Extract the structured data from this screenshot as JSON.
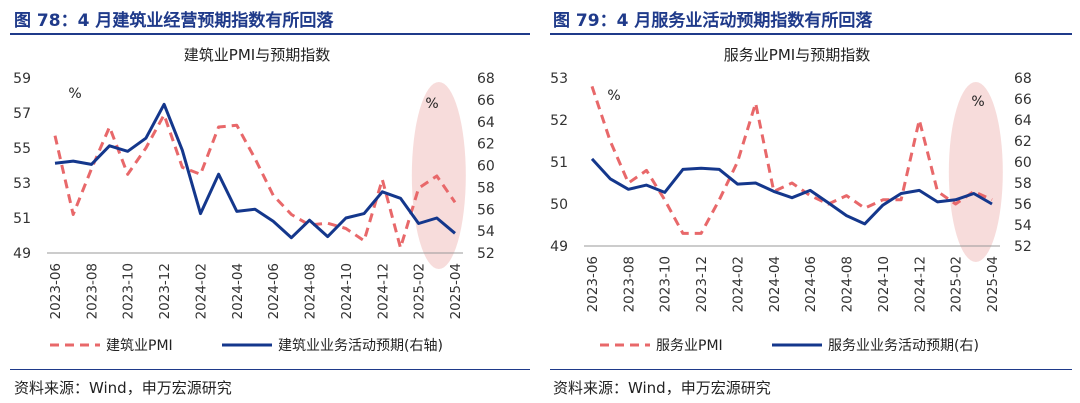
{
  "figures": {
    "left": {
      "heading": "图 78：4 月建筑业经营预期指数有所回落"
    },
    "right": {
      "heading": "图 79：4 月服务业活动预期指数有所回落"
    }
  },
  "source_note": "资料来源：Wind，申万宏源研究",
  "colors": {
    "pmi": "#e8686a",
    "expect": "#14378c",
    "highlight": "#f5d3d2",
    "heading": "#1f3a8a"
  },
  "chart_data": [
    {
      "type": "line",
      "title": "建筑业PMI与预期指数",
      "x_tick_labels": [
        "2023-06",
        "2023-08",
        "2023-10",
        "2023-12",
        "2024-02",
        "2024-04",
        "2024-06",
        "2024-08",
        "2024-10",
        "2024-12",
        "2025-02",
        "2025-04"
      ],
      "x": [
        "2023-06",
        "2023-07",
        "2023-08",
        "2023-09",
        "2023-10",
        "2023-11",
        "2023-12",
        "2024-01",
        "2024-02",
        "2024-03",
        "2024-04",
        "2024-05",
        "2024-06",
        "2024-07",
        "2024-08",
        "2024-09",
        "2024-10",
        "2024-11",
        "2024-12",
        "2025-01",
        "2025-02",
        "2025-03",
        "2025-04"
      ],
      "y_left": {
        "unit": "%",
        "min": 49,
        "max": 59,
        "ticks": [
          49,
          51,
          53,
          55,
          57,
          59
        ]
      },
      "y_right": {
        "min": 52,
        "max": 68,
        "ticks": [
          52,
          54,
          56,
          58,
          60,
          62,
          64,
          66,
          68
        ]
      },
      "series": [
        {
          "name": "建筑业PMI",
          "axis": "left",
          "style": "dashed",
          "values": [
            55.7,
            51.2,
            53.8,
            56.2,
            53.5,
            55.0,
            56.9,
            53.9,
            53.5,
            56.2,
            56.3,
            54.4,
            52.3,
            51.2,
            50.6,
            50.7,
            50.4,
            49.7,
            53.2,
            49.3,
            52.7,
            53.4,
            51.9
          ]
        },
        {
          "name": "建筑业业务活动预期(右轴)",
          "axis": "right",
          "style": "solid",
          "values": [
            60.2,
            60.4,
            60.1,
            61.8,
            61.3,
            62.5,
            65.6,
            61.4,
            55.6,
            59.2,
            55.8,
            56.0,
            54.9,
            53.4,
            55.0,
            53.5,
            55.2,
            55.6,
            57.6,
            57.0,
            54.7,
            55.2,
            53.8
          ]
        }
      ],
      "legend": {
        "placement": "bottom"
      },
      "highlight": "2025-02 to 2025-04"
    },
    {
      "type": "line",
      "title": "服务业PMI与预期指数",
      "x_tick_labels": [
        "2023-06",
        "2023-08",
        "2023-10",
        "2023-12",
        "2024-02",
        "2024-04",
        "2024-06",
        "2024-08",
        "2024-10",
        "2024-12",
        "2025-02",
        "2025-04"
      ],
      "x": [
        "2023-06",
        "2023-07",
        "2023-08",
        "2023-09",
        "2023-10",
        "2023-11",
        "2023-12",
        "2024-01",
        "2024-02",
        "2024-03",
        "2024-04",
        "2024-05",
        "2024-06",
        "2024-07",
        "2024-08",
        "2024-09",
        "2024-10",
        "2024-11",
        "2024-12",
        "2025-01",
        "2025-02",
        "2025-03",
        "2025-04"
      ],
      "y_left": {
        "unit": "%",
        "min": 49,
        "max": 53,
        "ticks": [
          49,
          50,
          51,
          52,
          53
        ]
      },
      "y_right": {
        "min": 52,
        "max": 68,
        "ticks": [
          52,
          54,
          56,
          58,
          60,
          62,
          64,
          66,
          68
        ]
      },
      "series": [
        {
          "name": "服务业PMI",
          "axis": "left",
          "style": "dashed",
          "values": [
            52.8,
            51.5,
            50.5,
            50.8,
            50.1,
            49.3,
            49.3,
            50.1,
            51.0,
            52.4,
            50.3,
            50.5,
            50.2,
            50.0,
            50.2,
            49.9,
            50.1,
            50.1,
            52.0,
            50.3,
            50.0,
            50.3,
            50.1
          ]
        },
        {
          "name": "服务业业务活动预期(右)",
          "axis": "right",
          "style": "solid",
          "values": [
            60.3,
            58.4,
            57.4,
            57.8,
            57.1,
            59.3,
            59.4,
            59.3,
            57.9,
            58.0,
            57.2,
            56.6,
            57.3,
            56.1,
            54.9,
            54.1,
            55.9,
            57.0,
            57.3,
            56.2,
            56.4,
            57.0,
            56.0
          ]
        }
      ],
      "legend": {
        "placement": "bottom"
      },
      "highlight": "2025-02 to 2025-04"
    }
  ]
}
